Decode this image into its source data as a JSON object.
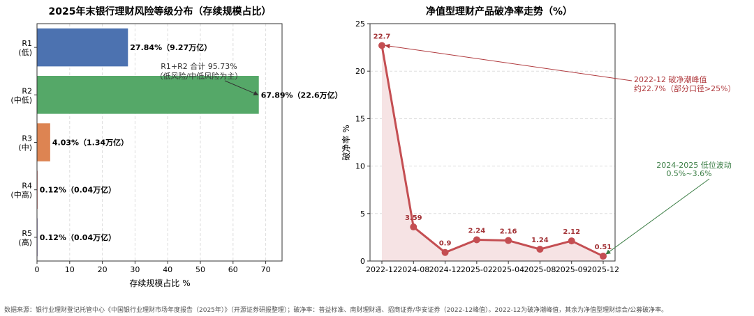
{
  "chart_data": [
    {
      "type": "bar",
      "orientation": "horizontal",
      "title": "2025年末银行理财风险等级分布（存续规模占比）",
      "xlabel": "存续规模占比 %",
      "ylabel": "",
      "xlim": [
        0,
        75
      ],
      "xticks": [
        "0",
        "10",
        "20",
        "30",
        "40",
        "50",
        "60",
        "70"
      ],
      "grid": "x-dashed",
      "categories": [
        {
          "line1": "R1",
          "line2": "(低)"
        },
        {
          "line1": "R2",
          "line2": "(中低)"
        },
        {
          "line1": "R3",
          "line2": "(中)"
        },
        {
          "line1": "R4",
          "line2": "(中高)"
        },
        {
          "line1": "R5",
          "line2": "(高)"
        }
      ],
      "values": [
        27.84,
        67.89,
        4.03,
        0.12,
        0.12
      ],
      "value_labels": [
        "27.84%（9.27万亿）",
        "67.89%（22.6万亿）",
        "4.03%（1.34万亿）",
        "0.12%（0.04万亿）",
        "0.12%（0.04万亿）"
      ],
      "colors": [
        "#4c72b0",
        "#55a868",
        "#dd8452",
        "#c44e52",
        "#8172b2"
      ],
      "annotation": {
        "line1": "R1+R2 合计 95.73%",
        "line2": "（低风险/中低风险为主）",
        "target_category": "R2",
        "target_value": 67.89
      }
    },
    {
      "type": "line",
      "title": "净值型理财产品破净率走势（%）",
      "xlabel": "",
      "ylabel": "破净率 %",
      "ylim": [
        0,
        25
      ],
      "yticks": [
        "0",
        "5",
        "10",
        "15",
        "20",
        "25"
      ],
      "grid": "y-dashed",
      "x": [
        "2022-12",
        "2024-08",
        "2024-12",
        "2025-02",
        "2025-04",
        "2025-08",
        "2025-09",
        "2025-12"
      ],
      "y": [
        22.7,
        3.59,
        0.9,
        2.24,
        2.16,
        1.24,
        2.12,
        0.51
      ],
      "point_labels": [
        "22.7",
        "3.59",
        "0.9",
        "2.24",
        "2.16",
        "1.24",
        "2.12",
        "0.51"
      ],
      "color": "#c44e52",
      "fill": "#f6e3e4",
      "annotations": [
        {
          "line1": "2022-12 破净潮峰值",
          "line2": "约22.7%（部分口径>25%）",
          "target_index": 0,
          "color": "#b03a3e"
        },
        {
          "line1": "2024-2025 低位波动",
          "line2": "0.5%~3.6%",
          "target_index": 7,
          "color": "#3a7d44"
        }
      ]
    }
  ],
  "footer": "数据来源：银行业理财登记托管中心《中国银行业理财市场年度报告（2025年）》（开源证券研报整理）；破净率：普益标准、南财理财通、招商证券/华安证券（2022-12峰值）。2022-12为破净潮峰值，其余为净值型理财综合/公募破净率。"
}
